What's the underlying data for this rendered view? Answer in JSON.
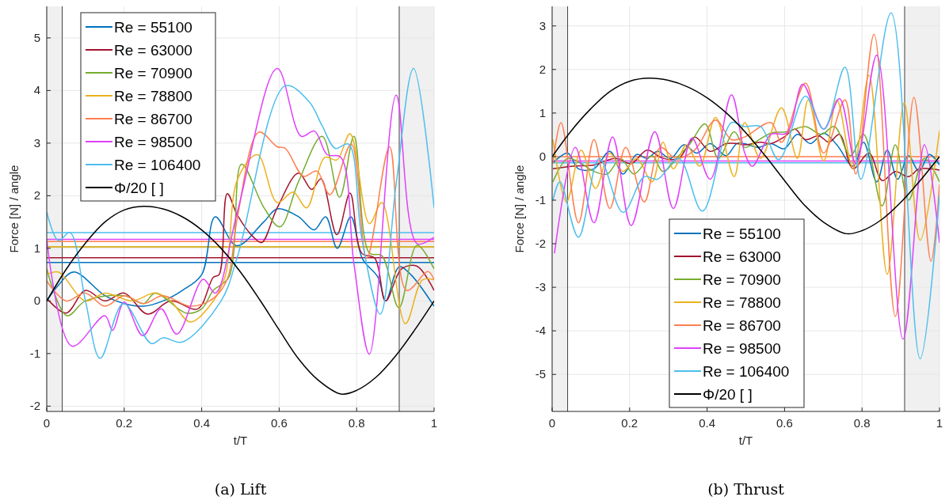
{
  "chart_data": [
    {
      "type": "line",
      "title": "(a) Lift",
      "xlabel": "t/T",
      "ylabel": "Force [N] / angle",
      "xlim": [
        0,
        1
      ],
      "ylim": [
        -2.1,
        5.6
      ],
      "xticks": [
        0,
        0.2,
        0.4,
        0.6,
        0.8,
        1
      ],
      "yticks": [
        -2,
        -1,
        0,
        1,
        2,
        3,
        4,
        5
      ],
      "grid": true,
      "legend": "top left",
      "line_style": "solid",
      "series": [
        {
          "name": "Re = 55100",
          "color": "#0072bd",
          "x": [
            0,
            0.03,
            0.07,
            0.15,
            0.2,
            0.25,
            0.3,
            0.35,
            0.4,
            0.435,
            0.49,
            0.56,
            0.595,
            0.65,
            0.69,
            0.72,
            0.75,
            0.785,
            0.815,
            0.855,
            0.875,
            0.91,
            0.94,
            1
          ],
          "values": [
            0.0,
            0.3,
            0.55,
            0.1,
            -0.05,
            -0.1,
            0.0,
            0.2,
            0.5,
            1.6,
            1.05,
            1.5,
            1.75,
            1.6,
            1.35,
            1.6,
            1.0,
            1.6,
            0.8,
            0.45,
            0.0,
            0.65,
            0.5,
            -0.1
          ]
        },
        {
          "name": "Re = 63000",
          "color": "#a2142f",
          "x": [
            0,
            0.05,
            0.1,
            0.15,
            0.2,
            0.26,
            0.32,
            0.39,
            0.43,
            0.445,
            0.466,
            0.493,
            0.534,
            0.555,
            0.595,
            0.65,
            0.684,
            0.708,
            0.749,
            0.783,
            0.813,
            0.847,
            0.875,
            0.916,
            0.956,
            1
          ],
          "values": [
            0.05,
            -0.23,
            0.2,
            0.0,
            0.15,
            -0.25,
            0.0,
            -0.15,
            0.45,
            0.5,
            2.04,
            1.62,
            1.21,
            1.11,
            1.77,
            2.43,
            2.12,
            2.32,
            1.26,
            2.05,
            0.91,
            0.81,
            0.0,
            0.61,
            0.66,
            0.2
          ]
        },
        {
          "name": "Re = 70900",
          "color": "#77ac30",
          "x": [
            0,
            0.052,
            0.1,
            0.2,
            0.25,
            0.28,
            0.36,
            0.4,
            0.43,
            0.47,
            0.503,
            0.561,
            0.602,
            0.65,
            0.711,
            0.756,
            0.793,
            0.833,
            0.865,
            0.909,
            0.956,
            1
          ],
          "values": [
            0.61,
            -0.28,
            0.0,
            0.1,
            -0.05,
            0.15,
            -0.23,
            -0.15,
            0.2,
            0.45,
            2.6,
            1.77,
            1.41,
            2.27,
            3.13,
            1.97,
            3.13,
            0.91,
            0.86,
            -0.13,
            1.06,
            0.61
          ]
        },
        {
          "name": "Re = 78800",
          "color": "#edb120",
          "x": [
            0,
            0.03,
            0.1,
            0.15,
            0.22,
            0.28,
            0.32,
            0.37,
            0.42,
            0.46,
            0.493,
            0.544,
            0.595,
            0.636,
            0.671,
            0.718,
            0.749,
            0.783,
            0.833,
            0.865,
            0.926,
            0.97,
            1
          ],
          "values": [
            0.5,
            0.55,
            0.0,
            0.15,
            0.0,
            0.15,
            0.0,
            -0.4,
            -0.1,
            0.45,
            2.32,
            2.78,
            1.87,
            2.07,
            1.77,
            2.73,
            2.68,
            3.18,
            1.47,
            1.87,
            -0.43,
            0.4,
            0.4
          ]
        },
        {
          "name": "Re = 86700",
          "color": "#ff7f50",
          "x": [
            0,
            0.05,
            0.1,
            0.15,
            0.2,
            0.25,
            0.3,
            0.37,
            0.42,
            0.45,
            0.47,
            0.493,
            0.548,
            0.595,
            0.616,
            0.663,
            0.697,
            0.731,
            0.786,
            0.826,
            0.885,
            0.929,
            0.984,
            1
          ],
          "values": [
            0.38,
            0.0,
            0.15,
            -0.1,
            0.1,
            -0.05,
            0.1,
            -0.1,
            0.0,
            0.2,
            0.5,
            1.62,
            3.21,
            2.93,
            2.9,
            2.37,
            2.47,
            2.02,
            2.98,
            0.81,
            2.93,
            0.2,
            0.56,
            0.4
          ]
        },
        {
          "name": "Re = 98500",
          "color": "#e040fb",
          "x": [
            0,
            0.065,
            0.15,
            0.17,
            0.2,
            0.248,
            0.295,
            0.336,
            0.404,
            0.435,
            0.493,
            0.595,
            0.657,
            0.691,
            0.724,
            0.759,
            0.793,
            0.833,
            0.902,
            0.956,
            1
          ],
          "values": [
            1.16,
            -0.86,
            -0.28,
            -0.56,
            -0.02,
            -0.66,
            -0.15,
            -0.63,
            0.41,
            0.15,
            1.72,
            4.42,
            3.13,
            3.23,
            2.78,
            2.73,
            0.71,
            -1.01,
            3.91,
            1.09,
            1.21
          ]
        },
        {
          "name": "Re = 106400",
          "color": "#4dbeee",
          "x": [
            0,
            0.03,
            0.06,
            0.1,
            0.138,
            0.198,
            0.27,
            0.3,
            0.35,
            0.45,
            0.493,
            0.616,
            0.677,
            0.711,
            0.745,
            0.779,
            0.813,
            0.861,
            0.902,
            0.947,
            1
          ],
          "values": [
            1.69,
            1.15,
            1.3,
            0.0,
            -1.09,
            -0.05,
            -0.81,
            -0.7,
            -0.78,
            0.0,
            0.86,
            4.09,
            3.79,
            3.33,
            2.9,
            2.98,
            1.21,
            -0.25,
            2.22,
            4.42,
            1.77
          ]
        },
        {
          "name": "Φ/20 [ ]",
          "color": "#000000",
          "x": [
            0,
            0.05,
            0.1,
            0.15,
            0.2,
            0.25,
            0.3,
            0.35,
            0.4,
            0.45,
            0.5,
            0.55,
            0.6,
            0.65,
            0.7,
            0.76,
            0.8,
            0.85,
            0.9,
            0.95,
            1
          ],
          "values": [
            0,
            0.6,
            1.1,
            1.5,
            1.73,
            1.8,
            1.75,
            1.6,
            1.35,
            1.0,
            0.55,
            0.02,
            -0.55,
            -1.1,
            -1.5,
            -1.77,
            -1.7,
            -1.45,
            -1.05,
            -0.55,
            0
          ]
        }
      ],
      "ref_lines": [
        {
          "axis": "x",
          "value": 0.04,
          "color": "#404040"
        },
        {
          "axis": "x",
          "value": 0.91,
          "color": "#404040"
        },
        {
          "axis": "y",
          "value": 0.73,
          "color": "#0072bd"
        },
        {
          "axis": "y",
          "value": 0.82,
          "color": "#a2142f"
        },
        {
          "axis": "y",
          "value": 1.03,
          "color": "#77ac30"
        },
        {
          "axis": "y",
          "value": 1.03,
          "color": "#edb120"
        },
        {
          "axis": "y",
          "value": 1.13,
          "color": "#ff7f50"
        },
        {
          "axis": "y",
          "value": 1.17,
          "color": "#e040fb"
        },
        {
          "axis": "y",
          "value": 1.3,
          "color": "#4dbeee"
        }
      ],
      "bands": [
        {
          "axis": "x",
          "from": 0,
          "to": 0.04,
          "color": "#f0f0f0"
        },
        {
          "axis": "x",
          "from": 0.91,
          "to": 1,
          "color": "#f0f0f0"
        }
      ]
    },
    {
      "type": "line",
      "title": "(b) Thrust",
      "xlabel": "t/T",
      "ylabel": "Force [N] / angle",
      "xlim": [
        0,
        1
      ],
      "ylim": [
        -5.85,
        3.45
      ],
      "xticks": [
        0,
        0.2,
        0.4,
        0.6,
        0.8,
        1
      ],
      "yticks": [
        -5,
        -4,
        -3,
        -2,
        -1,
        0,
        1,
        2,
        3
      ],
      "grid": true,
      "legend": "bottom left",
      "line_style": "solid",
      "series": [
        {
          "name": "Re = 55100",
          "color": "#0072bd",
          "x": [
            0.004,
            0.04,
            0.068,
            0.108,
            0.149,
            0.183,
            0.218,
            0.245,
            0.272,
            0.306,
            0.34,
            0.374,
            0.408,
            0.449,
            0.477,
            0.497,
            0.531,
            0.565,
            0.599,
            0.633,
            0.667,
            0.701,
            0.735,
            0.777,
            0.804,
            0.838,
            0.865,
            0.892,
            0.92,
            0.947,
            0.974,
            1.0
          ],
          "values": [
            -0.13,
            0.08,
            -0.28,
            -0.28,
            0.12,
            -0.4,
            0.05,
            -0.04,
            0.12,
            -0.04,
            0.27,
            0.08,
            0.3,
            0.02,
            0.3,
            0.3,
            0.21,
            0.3,
            0.18,
            0.51,
            0.3,
            0.54,
            0.27,
            -0.22,
            0.33,
            -0.58,
            0.15,
            -0.52,
            0.02,
            -0.34,
            0.05,
            -0.19
          ]
        },
        {
          "name": "Re = 63000",
          "color": "#a2142f",
          "x": [
            0.002,
            0.054,
            0.108,
            0.163,
            0.204,
            0.245,
            0.286,
            0.327,
            0.368,
            0.408,
            0.449,
            0.477,
            0.497,
            0.538,
            0.565,
            0.599,
            0.627,
            0.654,
            0.688,
            0.715,
            0.742,
            0.777,
            0.818,
            0.852,
            0.886,
            0.92,
            0.947,
            0.974,
            1.0
          ],
          "values": [
            -0.28,
            -0.22,
            -0.19,
            -0.04,
            -0.16,
            0.15,
            -0.04,
            -0.04,
            0.45,
            0.12,
            0.3,
            0.3,
            0.27,
            0.33,
            0.3,
            0.45,
            0.63,
            0.39,
            0.48,
            0.33,
            0.51,
            -0.28,
            0.08,
            -0.55,
            -0.34,
            -0.46,
            -0.28,
            -0.28,
            -0.31
          ]
        },
        {
          "name": "Re = 70900",
          "color": "#77ac30",
          "x": [
            0.002,
            0.04,
            0.075,
            0.108,
            0.142,
            0.177,
            0.211,
            0.258,
            0.286,
            0.327,
            0.354,
            0.395,
            0.429,
            0.47,
            0.497,
            0.524,
            0.565,
            0.606,
            0.654,
            0.695,
            0.729,
            0.77,
            0.804,
            0.852,
            0.886,
            0.92,
            0.961,
            1.0
          ],
          "values": [
            -0.58,
            -0.04,
            -0.16,
            -0.34,
            -0.4,
            -0.04,
            -0.4,
            0.02,
            -0.34,
            0.02,
            0.27,
            0.75,
            -0.04,
            0.57,
            0.21,
            0.33,
            0.54,
            0.57,
            0.69,
            0.51,
            0.69,
            0.02,
            0.51,
            -1.13,
            0.27,
            -1.0,
            -0.04,
            -0.58
          ]
        },
        {
          "name": "Re = 78800",
          "color": "#edb120",
          "x": [
            0.002,
            0.037,
            0.075,
            0.112,
            0.149,
            0.183,
            0.218,
            0.258,
            0.286,
            0.313,
            0.347,
            0.381,
            0.422,
            0.47,
            0.497,
            0.538,
            0.592,
            0.633,
            0.661,
            0.701,
            0.735,
            0.777,
            0.818,
            0.865,
            0.909,
            0.95,
            1.0
          ],
          "values": [
            0.39,
            -1.04,
            0.15,
            -0.73,
            0.08,
            -0.34,
            -0.04,
            -0.58,
            0.33,
            -0.28,
            0.27,
            -0.22,
            0.9,
            -0.46,
            0.78,
            -0.04,
            1.12,
            -0.04,
            1.3,
            -0.1,
            1.3,
            -0.28,
            1.87,
            -2.7,
            1.24,
            -1.92,
            0.6
          ]
        },
        {
          "name": "Re = 86700",
          "color": "#ff7f50",
          "x": [
            0.002,
            0.023,
            0.068,
            0.108,
            0.149,
            0.19,
            0.238,
            0.279,
            0.32,
            0.368,
            0.422,
            0.463,
            0.497,
            0.565,
            0.592,
            0.654,
            0.701,
            0.756,
            0.784,
            0.831,
            0.886,
            0.934,
            0.978,
            1.0
          ],
          "values": [
            -0.16,
            0.78,
            -1.52,
            0.39,
            -1.19,
            0.21,
            -1.04,
            0.21,
            -0.04,
            0.15,
            0.84,
            0.39,
            0.45,
            0.78,
            0.33,
            1.69,
            0.08,
            1.3,
            -0.4,
            2.81,
            -3.67,
            1.36,
            -2.4,
            -0.64
          ]
        },
        {
          "name": "Re = 98500",
          "color": "#e040fb",
          "x": [
            0.006,
            0.06,
            0.108,
            0.156,
            0.204,
            0.265,
            0.313,
            0.361,
            0.408,
            0.463,
            0.497,
            0.517,
            0.565,
            0.606,
            0.647,
            0.701,
            0.742,
            0.784,
            0.838,
            0.906,
            0.961,
            1.0
          ],
          "values": [
            -2.22,
            0.21,
            -1.52,
            0.45,
            -1.58,
            0.57,
            -1.19,
            0.42,
            -0.52,
            1.42,
            0.09,
            -0.22,
            0.51,
            0.54,
            1.66,
            0.63,
            1.33,
            -0.16,
            2.33,
            -4.19,
            0.27,
            -1.98
          ]
        },
        {
          "name": "Re = 106400",
          "color": "#4dbeee",
          "x": [
            0.002,
            0.02,
            0.068,
            0.122,
            0.183,
            0.238,
            0.272,
            0.327,
            0.388,
            0.463,
            0.497,
            0.538,
            0.585,
            0.654,
            0.701,
            0.756,
            0.797,
            0.875,
            0.95,
            1.0
          ],
          "values": [
            -1.01,
            -0.58,
            -1.85,
            -0.04,
            -1.28,
            -0.46,
            -0.52,
            -0.04,
            -1.25,
            0.78,
            0.69,
            0.69,
            -0.07,
            1.39,
            0.63,
            2.05,
            -0.52,
            3.3,
            -4.64,
            -0.88
          ]
        },
        {
          "name": "Φ/20 [ ]",
          "color": "#000000",
          "x": [
            0,
            0.05,
            0.1,
            0.15,
            0.2,
            0.25,
            0.3,
            0.35,
            0.4,
            0.45,
            0.5,
            0.55,
            0.6,
            0.65,
            0.7,
            0.76,
            0.8,
            0.85,
            0.9,
            0.95,
            1
          ],
          "values": [
            0,
            0.6,
            1.1,
            1.5,
            1.73,
            1.8,
            1.75,
            1.6,
            1.35,
            1.0,
            0.55,
            0.02,
            -0.55,
            -1.1,
            -1.5,
            -1.77,
            -1.7,
            -1.45,
            -1.05,
            -0.55,
            0
          ]
        }
      ],
      "ref_lines": [
        {
          "axis": "x",
          "value": 0.04,
          "color": "#404040"
        },
        {
          "axis": "x",
          "value": 0.91,
          "color": "#404040"
        },
        {
          "axis": "y",
          "value": 0,
          "color": "#ff7f50"
        },
        {
          "axis": "y",
          "value": -0.1,
          "color": "#e040fb"
        },
        {
          "axis": "y",
          "value": -0.14,
          "color": "#4dbeee"
        }
      ],
      "bands": [
        {
          "axis": "x",
          "from": 0,
          "to": 0.04,
          "color": "#f0f0f0"
        },
        {
          "axis": "x",
          "from": 0.91,
          "to": 1,
          "color": "#f0f0f0"
        }
      ]
    }
  ]
}
